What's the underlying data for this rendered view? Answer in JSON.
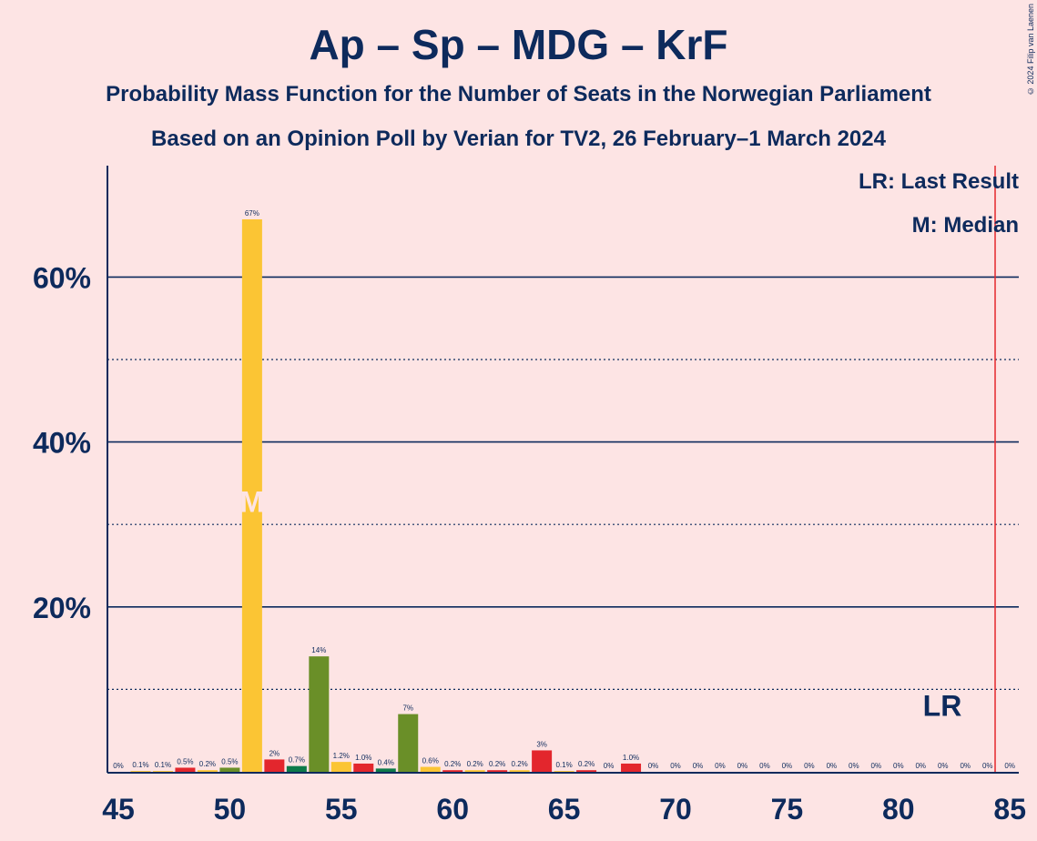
{
  "title": "Ap – Sp – MDG – KrF",
  "subtitle1": "Probability Mass Function for the Number of Seats in the Norwegian Parliament",
  "subtitle2": "Based on an Opinion Poll by Verian for TV2, 26 February–1 March 2024",
  "copyright": "© 2024 Filip van Laenen",
  "legend": {
    "last_result": "LR: Last Result",
    "median": "M: Median"
  },
  "colors": {
    "background": "#fde4e4",
    "text": "#0d2a5c",
    "ap": "#e3262d",
    "sp": "#fbc534",
    "mdg": "#6a8f28",
    "krf": "#0d7a4a",
    "last_result_line": "#e3262d",
    "median_marker": "#fde4e4"
  },
  "chart_data": {
    "type": "bar",
    "x_label_ticks": [
      45,
      50,
      55,
      60,
      65,
      70,
      75,
      80,
      85
    ],
    "y_ticks_labeled": [
      "20%",
      "40%",
      "60%"
    ],
    "y_ticks_values": [
      20,
      40,
      60
    ],
    "y_minor_dotted": [
      10,
      30,
      50
    ],
    "ylim": [
      0,
      74
    ],
    "xlim": [
      45,
      85
    ],
    "median_seat": 51,
    "median_label": "M",
    "last_result_seat": 85,
    "last_result_label": "LR",
    "bars": [
      {
        "seat": 45,
        "value": 0,
        "label": "0%",
        "color": "#fbc534"
      },
      {
        "seat": 46,
        "value": 0.1,
        "label": "0.1%",
        "color": "#fbc534"
      },
      {
        "seat": 47,
        "value": 0.1,
        "label": "0.1%",
        "color": "#fbc534"
      },
      {
        "seat": 48,
        "value": 0.5,
        "label": "0.5%",
        "color": "#e3262d"
      },
      {
        "seat": 49,
        "value": 0.2,
        "label": "0.2%",
        "color": "#fbc534"
      },
      {
        "seat": 50,
        "value": 0.5,
        "label": "0.5%",
        "color": "#6a8f28"
      },
      {
        "seat": 51,
        "value": 67,
        "label": "67%",
        "color": "#fbc534"
      },
      {
        "seat": 52,
        "value": 1.5,
        "label": "2%",
        "color": "#e3262d"
      },
      {
        "seat": 53,
        "value": 0.7,
        "label": "0.7%",
        "color": "#0d7a4a"
      },
      {
        "seat": 54,
        "value": 14,
        "label": "14%",
        "color": "#6a8f28"
      },
      {
        "seat": 55,
        "value": 1.2,
        "label": "1.2%",
        "color": "#fbc534"
      },
      {
        "seat": 56,
        "value": 1.0,
        "label": "1.0%",
        "color": "#e3262d"
      },
      {
        "seat": 57,
        "value": 0.4,
        "label": "0.4%",
        "color": "#0d7a4a"
      },
      {
        "seat": 58,
        "value": 7,
        "label": "7%",
        "color": "#6a8f28"
      },
      {
        "seat": 59,
        "value": 0.6,
        "label": "0.6%",
        "color": "#fbc534"
      },
      {
        "seat": 60,
        "value": 0.2,
        "label": "0.2%",
        "color": "#e3262d"
      },
      {
        "seat": 61,
        "value": 0.2,
        "label": "0.2%",
        "color": "#fbc534"
      },
      {
        "seat": 62,
        "value": 0.2,
        "label": "0.2%",
        "color": "#e3262d"
      },
      {
        "seat": 63,
        "value": 0.2,
        "label": "0.2%",
        "color": "#fbc534"
      },
      {
        "seat": 64,
        "value": 2.6,
        "label": "3%",
        "color": "#e3262d"
      },
      {
        "seat": 65,
        "value": 0.1,
        "label": "0.1%",
        "color": "#fbc534"
      },
      {
        "seat": 66,
        "value": 0.2,
        "label": "0.2%",
        "color": "#e3262d"
      },
      {
        "seat": 67,
        "value": 0,
        "label": "0%",
        "color": "#fbc534"
      },
      {
        "seat": 68,
        "value": 1.0,
        "label": "1.0%",
        "color": "#e3262d"
      },
      {
        "seat": 69,
        "value": 0,
        "label": "0%",
        "color": "#fbc534"
      },
      {
        "seat": 70,
        "value": 0,
        "label": "0%",
        "color": "#fbc534"
      },
      {
        "seat": 71,
        "value": 0,
        "label": "0%",
        "color": "#fbc534"
      },
      {
        "seat": 72,
        "value": 0,
        "label": "0%",
        "color": "#fbc534"
      },
      {
        "seat": 73,
        "value": 0,
        "label": "0%",
        "color": "#fbc534"
      },
      {
        "seat": 74,
        "value": 0,
        "label": "0%",
        "color": "#fbc534"
      },
      {
        "seat": 75,
        "value": 0,
        "label": "0%",
        "color": "#fbc534"
      },
      {
        "seat": 76,
        "value": 0,
        "label": "0%",
        "color": "#fbc534"
      },
      {
        "seat": 77,
        "value": 0,
        "label": "0%",
        "color": "#fbc534"
      },
      {
        "seat": 78,
        "value": 0,
        "label": "0%",
        "color": "#fbc534"
      },
      {
        "seat": 79,
        "value": 0,
        "label": "0%",
        "color": "#fbc534"
      },
      {
        "seat": 80,
        "value": 0,
        "label": "0%",
        "color": "#fbc534"
      },
      {
        "seat": 81,
        "value": 0,
        "label": "0%",
        "color": "#fbc534"
      },
      {
        "seat": 82,
        "value": 0,
        "label": "0%",
        "color": "#fbc534"
      },
      {
        "seat": 83,
        "value": 0,
        "label": "0%",
        "color": "#fbc534"
      },
      {
        "seat": 84,
        "value": 0,
        "label": "0%",
        "color": "#fbc534"
      },
      {
        "seat": 85,
        "value": 0,
        "label": "0%",
        "color": "#fbc534"
      }
    ]
  }
}
